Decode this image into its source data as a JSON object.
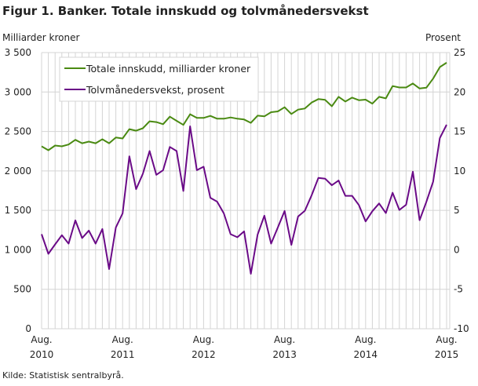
{
  "chart_data": {
    "type": "line",
    "title": "Figur 1. Banker. Totale innskudd og tolvmånedersvekst",
    "ylabel_left": "Milliarder  kroner",
    "ylabel_right": "Prosent",
    "ylim_left": [
      0,
      3500
    ],
    "ylim_right": [
      -10,
      25
    ],
    "yticks_left": [
      "0",
      "500",
      "1 000",
      "1 500",
      "2 000",
      "2 500",
      "3 000",
      "3 500"
    ],
    "yticks_right": [
      "-10",
      "-5",
      "0",
      "5",
      "10",
      "15",
      "20",
      "25"
    ],
    "xticks": [
      {
        "month": "Aug.",
        "year": "2010"
      },
      {
        "month": "Aug.",
        "year": "2011"
      },
      {
        "month": "Aug.",
        "year": "2012"
      },
      {
        "month": "Aug.",
        "year": "2013"
      },
      {
        "month": "Aug.",
        "year": "2014"
      },
      {
        "month": "Aug.",
        "year": "2015"
      }
    ],
    "x_start": "Aug. 2010",
    "x_end": "Aug. 2015",
    "grid": true,
    "legend_position": "top-left",
    "series": [
      {
        "name": "Totale innskudd, milliarder kroner",
        "axis": "left",
        "color": "#4a8a12",
        "values": [
          2312,
          2262,
          2322,
          2312,
          2335,
          2394,
          2351,
          2371,
          2351,
          2401,
          2351,
          2424,
          2411,
          2530,
          2510,
          2540,
          2629,
          2619,
          2592,
          2688,
          2635,
          2583,
          2718,
          2672,
          2672,
          2698,
          2662,
          2662,
          2678,
          2662,
          2652,
          2609,
          2701,
          2692,
          2744,
          2754,
          2807,
          2721,
          2777,
          2791,
          2867,
          2910,
          2900,
          2820,
          2939,
          2880,
          2929,
          2896,
          2903,
          2853,
          2939,
          2919,
          3075,
          3058,
          3058,
          3108,
          3045,
          3055,
          3170,
          3316,
          3372
        ]
      },
      {
        "name": "Tolvmånedersvekst, prosent",
        "axis": "right",
        "color": "#6a0a87",
        "values": [
          1.98,
          -0.5,
          0.69,
          1.85,
          0.79,
          3.73,
          1.49,
          2.44,
          0.79,
          2.64,
          -2.44,
          2.84,
          4.62,
          11.86,
          7.69,
          9.64,
          12.52,
          9.51,
          10.1,
          13.04,
          12.52,
          7.46,
          15.65,
          10.1,
          10.53,
          6.6,
          6.11,
          4.62,
          1.98,
          1.59,
          2.34,
          -3.04,
          1.92,
          4.33,
          0.79,
          2.84,
          4.92,
          0.63,
          4.23,
          4.95,
          6.9,
          9.11,
          9.02,
          8.19,
          8.78,
          6.84,
          6.84,
          5.68,
          3.6,
          4.89,
          5.88,
          4.66,
          7.23,
          5.05,
          5.71,
          9.91,
          3.76,
          6.08,
          8.62,
          14.17,
          15.85
        ]
      }
    ]
  },
  "source": "Kilde: Statistisk sentralbyrå."
}
